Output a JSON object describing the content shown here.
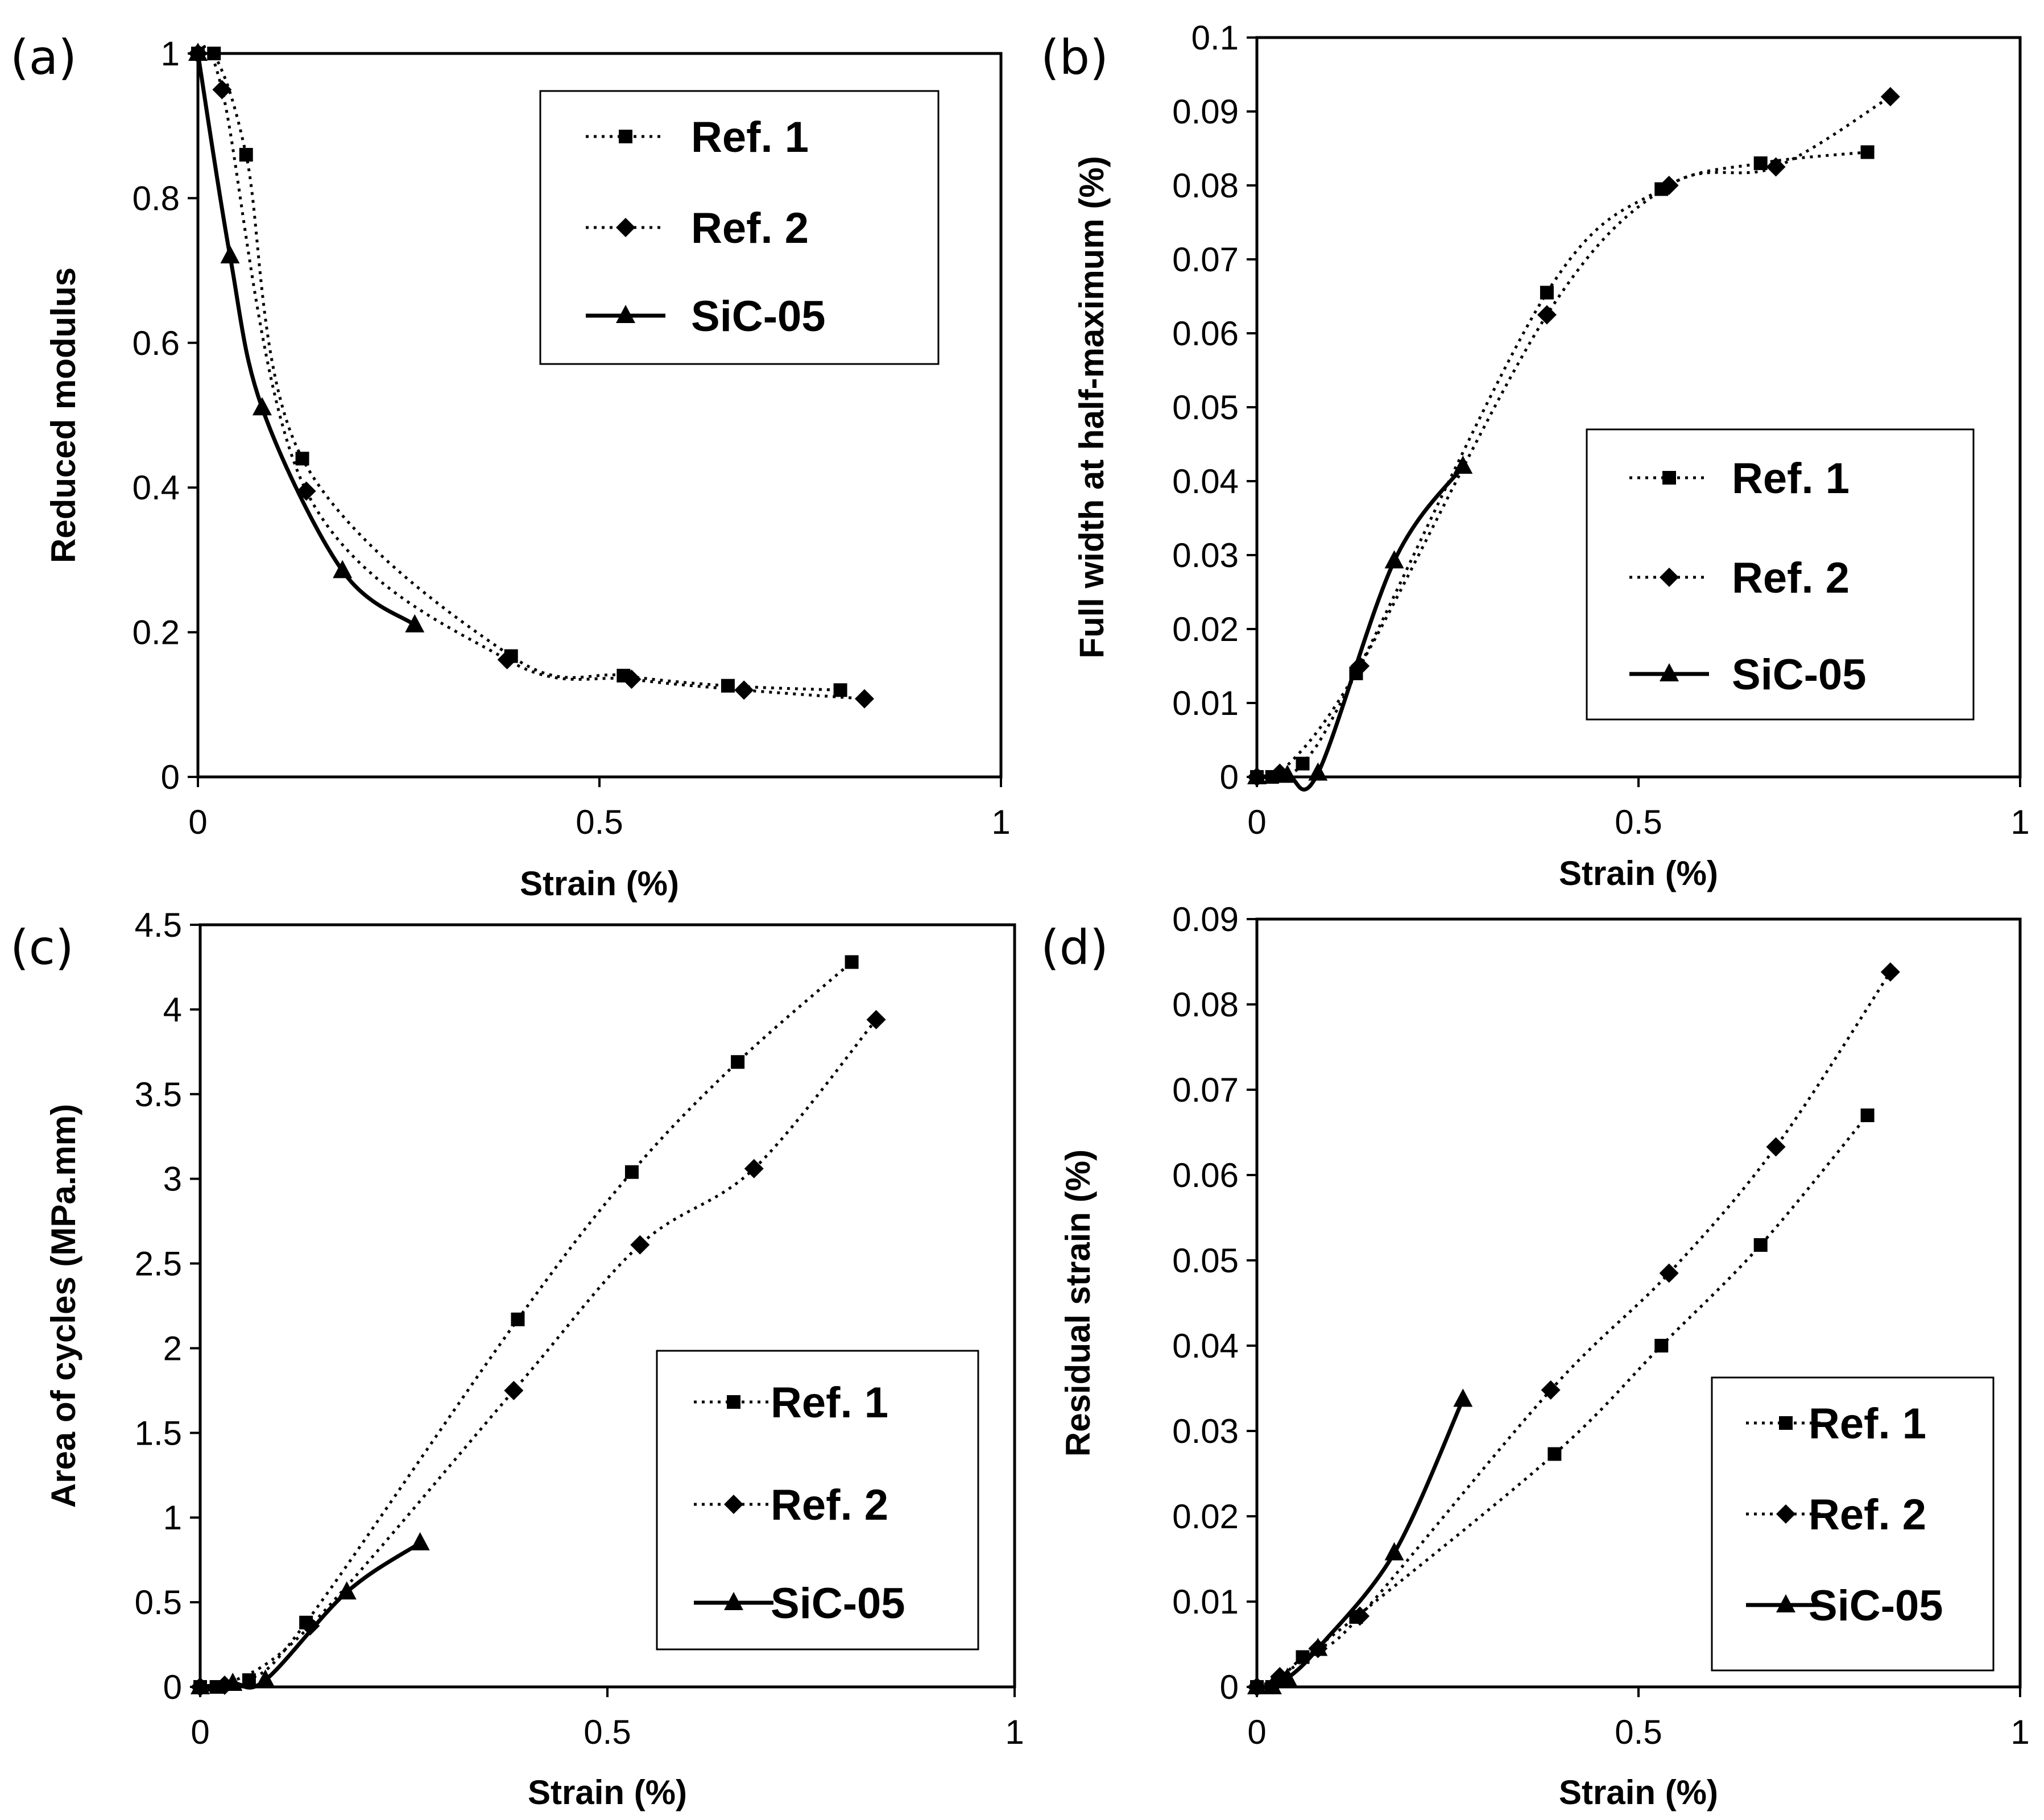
{
  "chart_data": [
    {
      "panel": "(a)",
      "type": "line",
      "xlabel": "Strain (%)",
      "ylabel": "Reduced modulus",
      "xlim": [
        0,
        1
      ],
      "ylim": [
        0,
        1
      ],
      "xticks": [
        0,
        0.5,
        1
      ],
      "xtick_labels": [
        "0",
        "0.5",
        "1"
      ],
      "yticks": [
        0,
        0.2,
        0.4,
        0.6,
        0.8,
        1
      ],
      "ytick_labels": [
        "0",
        "0.2",
        "0.4",
        "0.6",
        "0.8",
        "1"
      ],
      "legend": {
        "position": "top-right"
      },
      "series": [
        {
          "name": "Ref. 1",
          "marker": "square",
          "style": "dotted",
          "x": [
            0,
            0.02,
            0.06,
            0.13,
            0.39,
            0.53,
            0.66,
            0.8
          ],
          "y": [
            1,
            1,
            0.86,
            0.44,
            0.167,
            0.14,
            0.126,
            0.12
          ]
        },
        {
          "name": "Ref. 2",
          "marker": "diamond",
          "style": "dotted",
          "x": [
            0,
            0.03,
            0.135,
            0.385,
            0.54,
            0.68,
            0.83
          ],
          "y": [
            1,
            0.95,
            0.395,
            0.162,
            0.135,
            0.12,
            0.108
          ]
        },
        {
          "name": "SiC-05",
          "marker": "triangle",
          "style": "solid",
          "x": [
            0,
            0.04,
            0.08,
            0.18,
            0.27
          ],
          "y": [
            1,
            0.72,
            0.51,
            0.285,
            0.21
          ]
        }
      ]
    },
    {
      "panel": "(b)",
      "type": "line",
      "xlabel": "Strain (%)",
      "ylabel": "Full width at half-maximum (%)",
      "xlim": [
        0,
        1
      ],
      "ylim": [
        0,
        0.1
      ],
      "xticks": [
        0,
        0.5,
        1
      ],
      "xtick_labels": [
        "0",
        "0.5",
        "1"
      ],
      "yticks": [
        0,
        0.01,
        0.02,
        0.03,
        0.04,
        0.05,
        0.06,
        0.07,
        0.08,
        0.09,
        0.1
      ],
      "ytick_labels": [
        "0",
        "0.01",
        "0.02",
        "0.03",
        "0.04",
        "0.05",
        "0.06",
        "0.07",
        "0.08",
        "0.09",
        "0.1"
      ],
      "legend": {
        "position": "center-right"
      },
      "series": [
        {
          "name": "Ref. 1",
          "marker": "square",
          "style": "dotted",
          "x": [
            0,
            0.02,
            0.06,
            0.13,
            0.38,
            0.53,
            0.66,
            0.8
          ],
          "y": [
            0,
            0,
            0.0018,
            0.014,
            0.0655,
            0.0795,
            0.083,
            0.0845
          ]
        },
        {
          "name": "Ref. 2",
          "marker": "diamond",
          "style": "dotted",
          "x": [
            0,
            0.03,
            0.135,
            0.38,
            0.54,
            0.68,
            0.83
          ],
          "y": [
            0,
            0.0005,
            0.015,
            0.0625,
            0.08,
            0.0825,
            0.092
          ]
        },
        {
          "name": "SiC-05",
          "marker": "triangle",
          "style": "solid",
          "x": [
            0,
            0.04,
            0.08,
            0.18,
            0.27
          ],
          "y": [
            0,
            0.0002,
            0.0005,
            0.0292,
            0.042
          ]
        }
      ]
    },
    {
      "panel": "(c)",
      "type": "line",
      "xlabel": "Strain (%)",
      "ylabel": "Area of cycles (MPa.mm)",
      "xlim": [
        0,
        1
      ],
      "ylim": [
        0,
        4.5
      ],
      "xticks": [
        0,
        0.5,
        1
      ],
      "xtick_labels": [
        "0",
        "0.5",
        "1"
      ],
      "yticks": [
        0,
        0.5,
        1,
        1.5,
        2,
        2.5,
        3,
        3.5,
        4,
        4.5
      ],
      "ytick_labels": [
        "0",
        "0.5",
        "1",
        "1.5",
        "2",
        "2.5",
        "3",
        "3.5",
        "4",
        "4.5"
      ],
      "legend": {
        "position": "bottom-right"
      },
      "series": [
        {
          "name": "Ref. 1",
          "marker": "square",
          "style": "dotted",
          "x": [
            0,
            0.02,
            0.06,
            0.13,
            0.39,
            0.53,
            0.66,
            0.8
          ],
          "y": [
            0,
            0,
            0.04,
            0.38,
            2.17,
            3.04,
            3.69,
            4.28
          ]
        },
        {
          "name": "Ref. 2",
          "marker": "diamond",
          "style": "dotted",
          "x": [
            0,
            0.03,
            0.135,
            0.385,
            0.54,
            0.68,
            0.83
          ],
          "y": [
            0,
            0.01,
            0.36,
            1.75,
            2.61,
            3.06,
            3.94
          ]
        },
        {
          "name": "SiC-05",
          "marker": "triangle",
          "style": "solid",
          "x": [
            0,
            0.04,
            0.08,
            0.18,
            0.27
          ],
          "y": [
            0,
            0.02,
            0.04,
            0.56,
            0.85
          ]
        }
      ]
    },
    {
      "panel": "(d)",
      "type": "line",
      "xlabel": "Strain (%)",
      "ylabel": "Residual strain (%)",
      "xlim": [
        0,
        1
      ],
      "ylim": [
        0,
        0.09
      ],
      "xticks": [
        0,
        0.5,
        1
      ],
      "xtick_labels": [
        "0",
        "0.5",
        "1"
      ],
      "yticks": [
        0,
        0.01,
        0.02,
        0.03,
        0.04,
        0.05,
        0.06,
        0.07,
        0.08,
        0.09
      ],
      "ytick_labels": [
        "0",
        "0.01",
        "0.02",
        "0.03",
        "0.04",
        "0.05",
        "0.06",
        "0.07",
        "0.08",
        "0.09"
      ],
      "legend": {
        "position": "bottom-right"
      },
      "series": [
        {
          "name": "Ref. 1",
          "marker": "square",
          "style": "dotted",
          "x": [
            0,
            0.02,
            0.06,
            0.13,
            0.39,
            0.53,
            0.66,
            0.8
          ],
          "y": [
            0,
            0,
            0.0035,
            0.0082,
            0.0273,
            0.04,
            0.0518,
            0.067
          ]
        },
        {
          "name": "Ref. 2",
          "marker": "diamond",
          "style": "dotted",
          "x": [
            0,
            0.03,
            0.08,
            0.135,
            0.385,
            0.54,
            0.68,
            0.83
          ],
          "y": [
            0,
            0.0012,
            0.0045,
            0.0083,
            0.0348,
            0.0485,
            0.0633,
            0.0838
          ]
        },
        {
          "name": "SiC-05",
          "marker": "triangle",
          "style": "solid",
          "x": [
            0,
            0.02,
            0.04,
            0.08,
            0.18,
            0.27
          ],
          "y": [
            0,
            0,
            0.001,
            0.0045,
            0.0157,
            0.0337
          ]
        }
      ]
    }
  ]
}
